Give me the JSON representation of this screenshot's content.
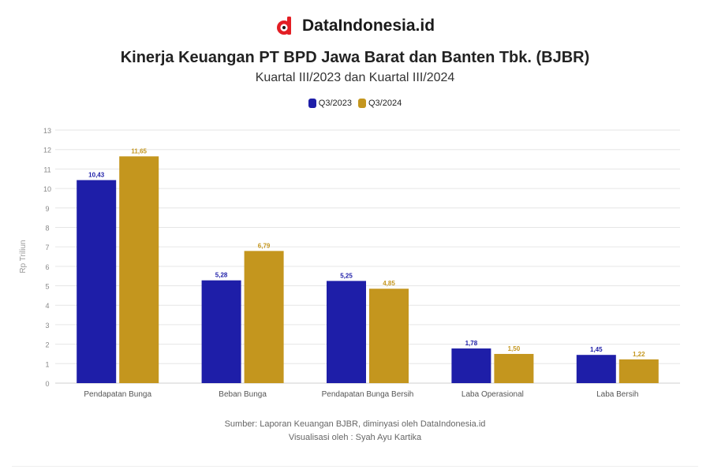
{
  "brand": {
    "name": "DataIndonesia.id",
    "logo_icon": "dataindonesia-logo-icon",
    "logo_color": "#e31e24"
  },
  "chart_data": {
    "type": "bar",
    "title": "Kinerja Keuangan PT BPD Jawa Barat dan Banten Tbk. (BJBR)",
    "subtitle": "Kuartal III/2023 dan Kuartal III/2024",
    "ylabel": "Rp Triliun",
    "ylim": [
      0,
      13
    ],
    "yticks": [
      0,
      1,
      2,
      3,
      4,
      5,
      6,
      7,
      8,
      9,
      10,
      11,
      12,
      13
    ],
    "grid": true,
    "legend_position": "top-center",
    "categories": [
      "Pendapatan Bunga",
      "Beban Bunga",
      "Pendapatan Bunga Bersih",
      "Laba Operasional",
      "Laba Bersih"
    ],
    "series": [
      {
        "name": "Q3/2023",
        "color": "#1e1ea8",
        "values": [
          10.43,
          5.28,
          5.25,
          1.78,
          1.45
        ],
        "labels": [
          "10,43",
          "5,28",
          "5,25",
          "1,78",
          "1,45"
        ]
      },
      {
        "name": "Q3/2024",
        "color": "#c4961e",
        "values": [
          11.65,
          6.79,
          4.85,
          1.5,
          1.22
        ],
        "labels": [
          "11,65",
          "6,79",
          "4,85",
          "1,50",
          "1,22"
        ]
      }
    ]
  },
  "footer": {
    "source": "Sumber: Laporan Keuangan BJBR, diminyasi oleh DataIndonesia.id",
    "credit": "Visualisasi oleh : Syah Ayu Kartika"
  }
}
